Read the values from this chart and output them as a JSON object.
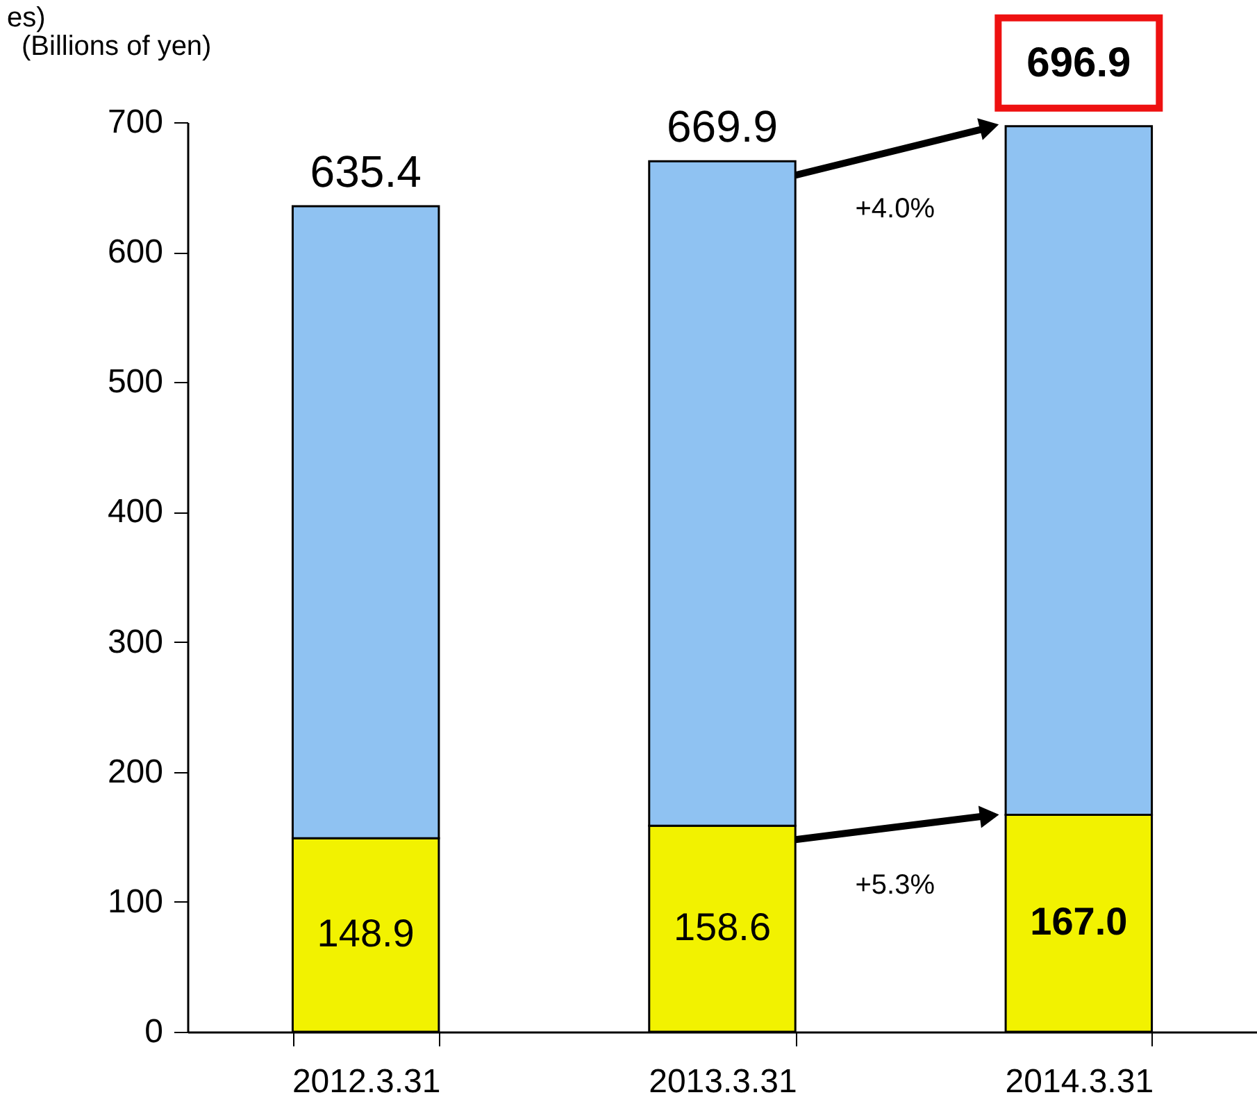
{
  "chart_data": {
    "type": "bar",
    "stacked": true,
    "ylabel": "(Billions of yen)",
    "categories": [
      "2012.3.31",
      "2013.3.31",
      "2014.3.31"
    ],
    "series": [
      {
        "color": "#f2f200",
        "values": [
          148.9,
          158.6,
          167.0
        ],
        "value_labels": [
          "148.9",
          "158.6",
          "167.0"
        ]
      },
      {
        "color": "#8fc2f2",
        "values": [
          486.5,
          511.3,
          529.9
        ]
      }
    ],
    "totals": [
      "635.4",
      "669.9",
      "696.9"
    ],
    "annotations": [
      "es)",
      "+4.0%",
      "+5.3%"
    ],
    "ylim": [
      0,
      700
    ],
    "yticks": [
      0,
      100,
      200,
      300,
      400,
      500,
      600,
      700
    ],
    "grid": false
  }
}
